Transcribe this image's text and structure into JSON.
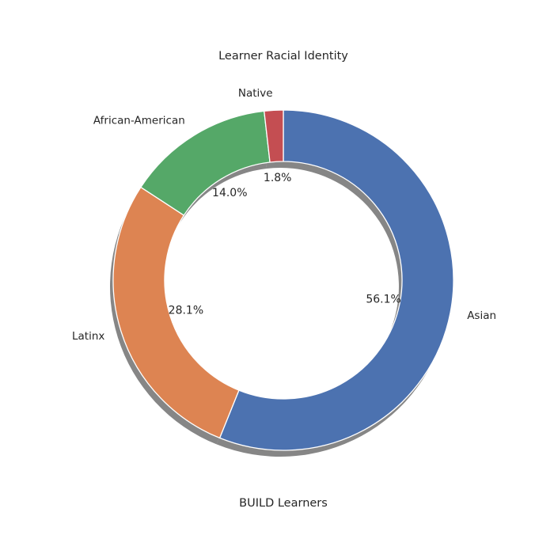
{
  "chart_data": {
    "type": "pie",
    "title": "Learner Racial Identity",
    "xlabel": "BUILD Learners",
    "donut": true,
    "shadow": true,
    "slices": [
      {
        "label": "Asian",
        "value": 56.1,
        "pct_label": "56.1%",
        "color": "#4c72b0"
      },
      {
        "label": "Latinx",
        "value": 28.1,
        "pct_label": "28.1%",
        "color": "#dd8452"
      },
      {
        "label": "African-American",
        "value": 14.0,
        "pct_label": "14.0%",
        "color": "#55a868"
      },
      {
        "label": "Native",
        "value": 1.8,
        "pct_label": "1.8%",
        "color": "#c44e52"
      }
    ]
  }
}
